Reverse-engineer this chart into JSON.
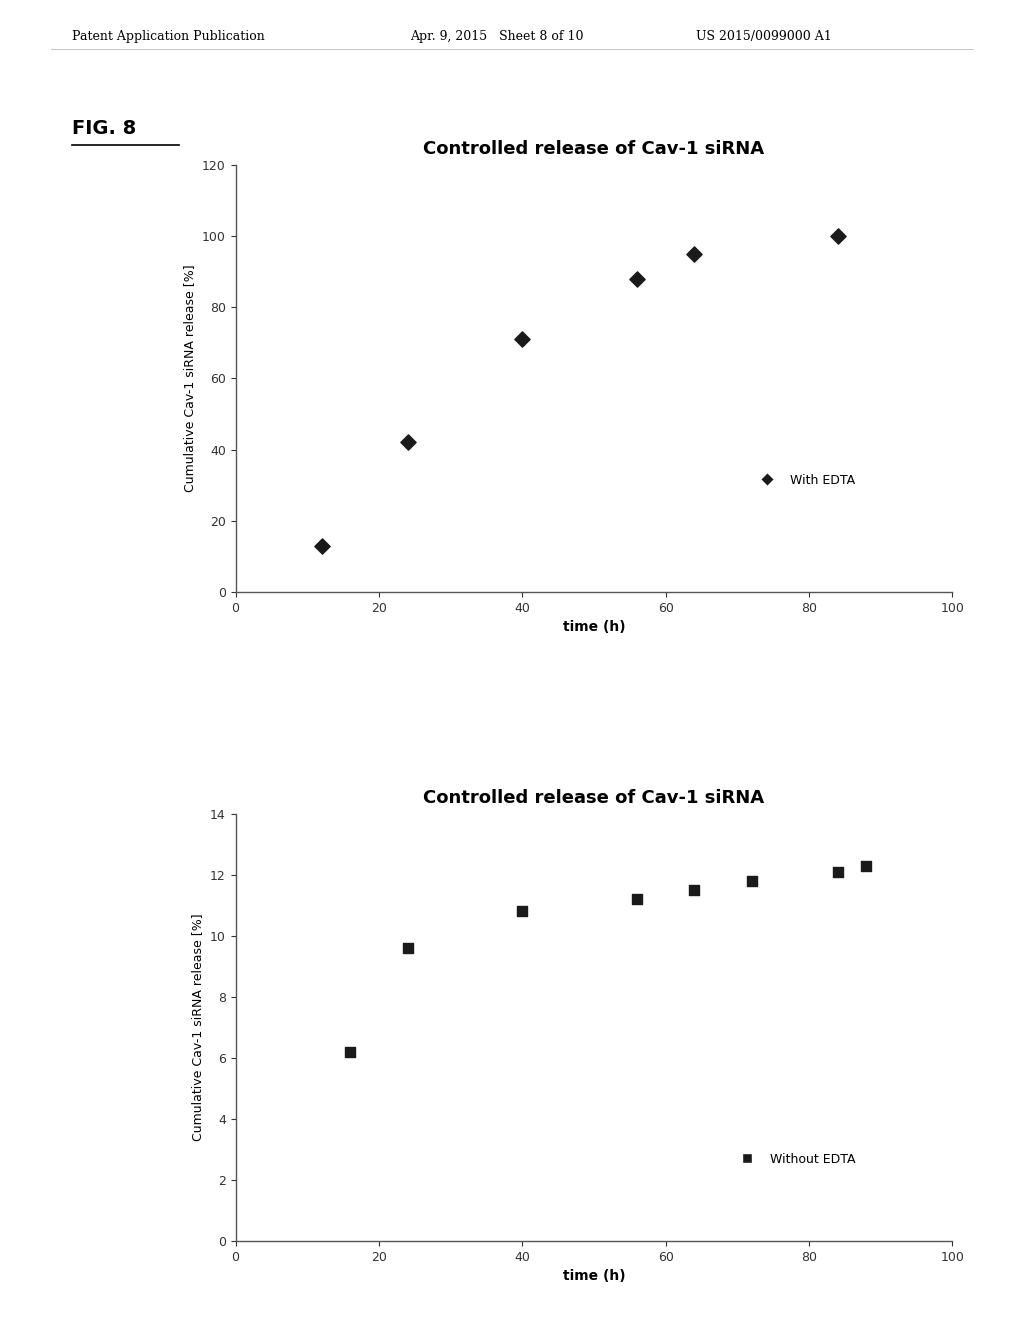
{
  "header_left": "Patent Application Publication",
  "header_mid": "Apr. 9, 2015   Sheet 8 of 10",
  "header_right": "US 2015/0099000 A1",
  "fig_label": "FIG. 8",
  "plot1": {
    "title": "Controlled release of Cav-1 siRNA",
    "xlabel": "time (h)",
    "ylabel": "Cumulative Cav-1 siRNA release [%]",
    "x": [
      12,
      24,
      40,
      56,
      64,
      84
    ],
    "y": [
      13,
      42,
      71,
      88,
      95,
      100
    ],
    "xlim": [
      0,
      100
    ],
    "ylim": [
      0,
      120
    ],
    "xticks": [
      0,
      20,
      40,
      60,
      80,
      100
    ],
    "yticks": [
      0,
      20,
      40,
      60,
      80,
      100,
      120
    ],
    "legend_label": "With EDTA",
    "marker": "D",
    "marker_color": "#1a1a1a",
    "marker_size": 60
  },
  "plot2": {
    "title": "Controlled release of Cav-1 siRNA",
    "xlabel": "time (h)",
    "ylabel": "Cumulative Cav-1 siRNA release [%]",
    "x": [
      16,
      24,
      40,
      56,
      64,
      72,
      84,
      88
    ],
    "y": [
      6.2,
      9.6,
      10.8,
      11.2,
      11.5,
      11.8,
      12.1,
      12.3
    ],
    "xlim": [
      0,
      100
    ],
    "ylim": [
      0,
      14
    ],
    "xticks": [
      0,
      20,
      40,
      60,
      80,
      100
    ],
    "yticks": [
      0,
      2,
      4,
      6,
      8,
      10,
      12,
      14
    ],
    "legend_label": "Without EDTA",
    "marker": "s",
    "marker_color": "#1a1a1a",
    "marker_size": 55
  },
  "bg_color": "#ffffff",
  "text_color": "#000000",
  "axis_color": "#555555",
  "header_fontsize": 9,
  "fig_label_fontsize": 14,
  "title_fontsize": 13,
  "axis_label_fontsize": 10,
  "tick_fontsize": 9,
  "legend_fontsize": 9
}
